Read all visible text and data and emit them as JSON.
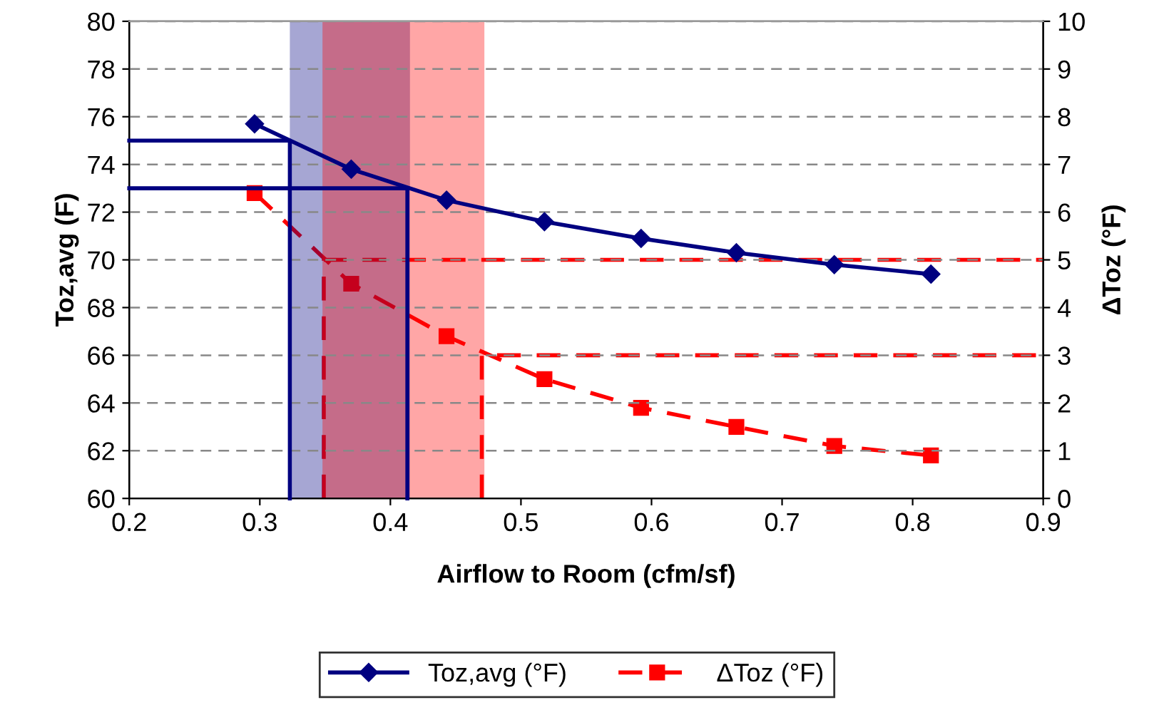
{
  "chart_data": {
    "type": "line",
    "xlabel": "Airflow to Room (cfm/sf)",
    "ylabel": "Toz,avg (F)",
    "y2label": "ΔToz (°F)",
    "xlim": [
      0.2,
      0.9
    ],
    "xticks": [
      0.2,
      0.3,
      0.4,
      0.5,
      0.6,
      0.7,
      0.8,
      0.9
    ],
    "ylim": [
      60,
      80
    ],
    "yticks": [
      60,
      62,
      64,
      66,
      68,
      70,
      72,
      74,
      76,
      78,
      80
    ],
    "y2lim": [
      0,
      10
    ],
    "y2ticks": [
      0,
      1,
      2,
      3,
      4,
      5,
      6,
      7,
      8,
      9,
      10
    ],
    "grid": "y",
    "legend": "bottom",
    "bands": [
      {
        "axis": "x",
        "from": 0.323,
        "to": 0.415,
        "color": "#000080"
      },
      {
        "axis": "x",
        "from": 0.348,
        "to": 0.472,
        "color": "#ff0000"
      }
    ],
    "series": [
      {
        "name": "Toz,avg (°F)",
        "color": "#000080",
        "marker": "diamond",
        "line_style": "solid",
        "x": [
          0.296,
          0.37,
          0.443,
          0.518,
          0.592,
          0.665,
          0.74,
          0.814
        ],
        "values": [
          75.7,
          73.8,
          72.5,
          71.6,
          70.9,
          70.3,
          69.8,
          69.4
        ]
      },
      {
        "name": "ΔToz (°F)",
        "color": "#ff0000",
        "marker": "square",
        "line_style": "dashed",
        "axis": "y2",
        "x": [
          0.296,
          0.37,
          0.443,
          0.518,
          0.592,
          0.665,
          0.74,
          0.814
        ],
        "values": [
          6.4,
          4.5,
          3.4,
          2.5,
          1.9,
          1.5,
          1.1,
          0.9
        ]
      },
      {
        "color": "#000080",
        "marker": "none",
        "line_style": "solid",
        "x": [
          0.2,
          0.323,
          0.323
        ],
        "values": [
          75,
          75,
          60
        ]
      },
      {
        "color": "#000080",
        "marker": "none",
        "line_style": "solid",
        "x": [
          0.2,
          0.413,
          0.413
        ],
        "values": [
          73,
          73,
          60
        ]
      },
      {
        "color": "#ff0000",
        "marker": "none",
        "line_style": "dashed",
        "axis": "y2",
        "x": [
          0.349,
          0.349,
          0.9
        ],
        "values": [
          0,
          5,
          5
        ]
      },
      {
        "color": "#ff0000",
        "marker": "none",
        "line_style": "dashed",
        "axis": "y2",
        "x": [
          0.47,
          0.47,
          0.9
        ],
        "values": [
          0,
          3,
          3
        ]
      }
    ]
  }
}
